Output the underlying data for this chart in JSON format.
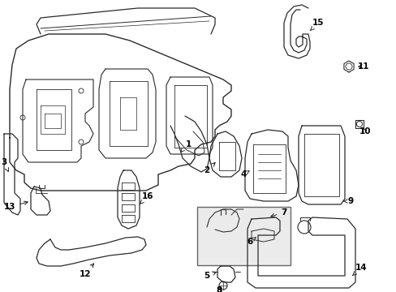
{
  "background_color": "#ffffff",
  "line_color": "#2a2a2a",
  "label_color": "#000000",
  "fig_width": 4.89,
  "fig_height": 3.6,
  "dpi": 100,
  "font_size": 7.5,
  "box_fill": "#ebebeb",
  "box_edge": "#555555"
}
